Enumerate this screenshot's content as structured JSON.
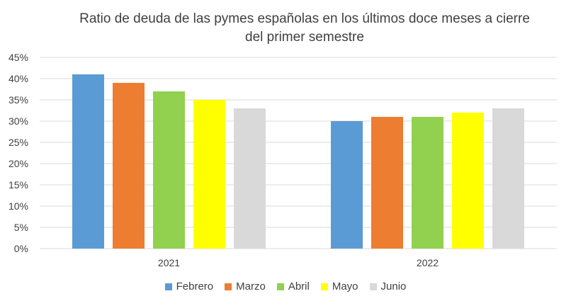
{
  "chart_data": {
    "type": "bar",
    "title_line1": "Ratio de deuda de las pymes españolas en los últimos doce meses a cierre",
    "title_line2": "del primer semestre",
    "categories": [
      "2021",
      "2022"
    ],
    "series": [
      {
        "name": "Febrero",
        "values": [
          0.41,
          0.3
        ],
        "color": "#5B9BD5"
      },
      {
        "name": "Marzo",
        "values": [
          0.39,
          0.31
        ],
        "color": "#ED7D31"
      },
      {
        "name": "Abril",
        "values": [
          0.37,
          0.31
        ],
        "color": "#92D050"
      },
      {
        "name": "Mayo",
        "values": [
          0.35,
          0.32
        ],
        "color": "#FFFF00"
      },
      {
        "name": "Junio",
        "values": [
          0.33,
          0.33
        ],
        "color": "#D9D9D9"
      }
    ],
    "yticks": [
      "0%",
      "5%",
      "10%",
      "15%",
      "20%",
      "25%",
      "30%",
      "35%",
      "40%",
      "45%"
    ],
    "ylim": [
      0,
      0.45
    ],
    "grid": true,
    "legend_position": "bottom"
  }
}
